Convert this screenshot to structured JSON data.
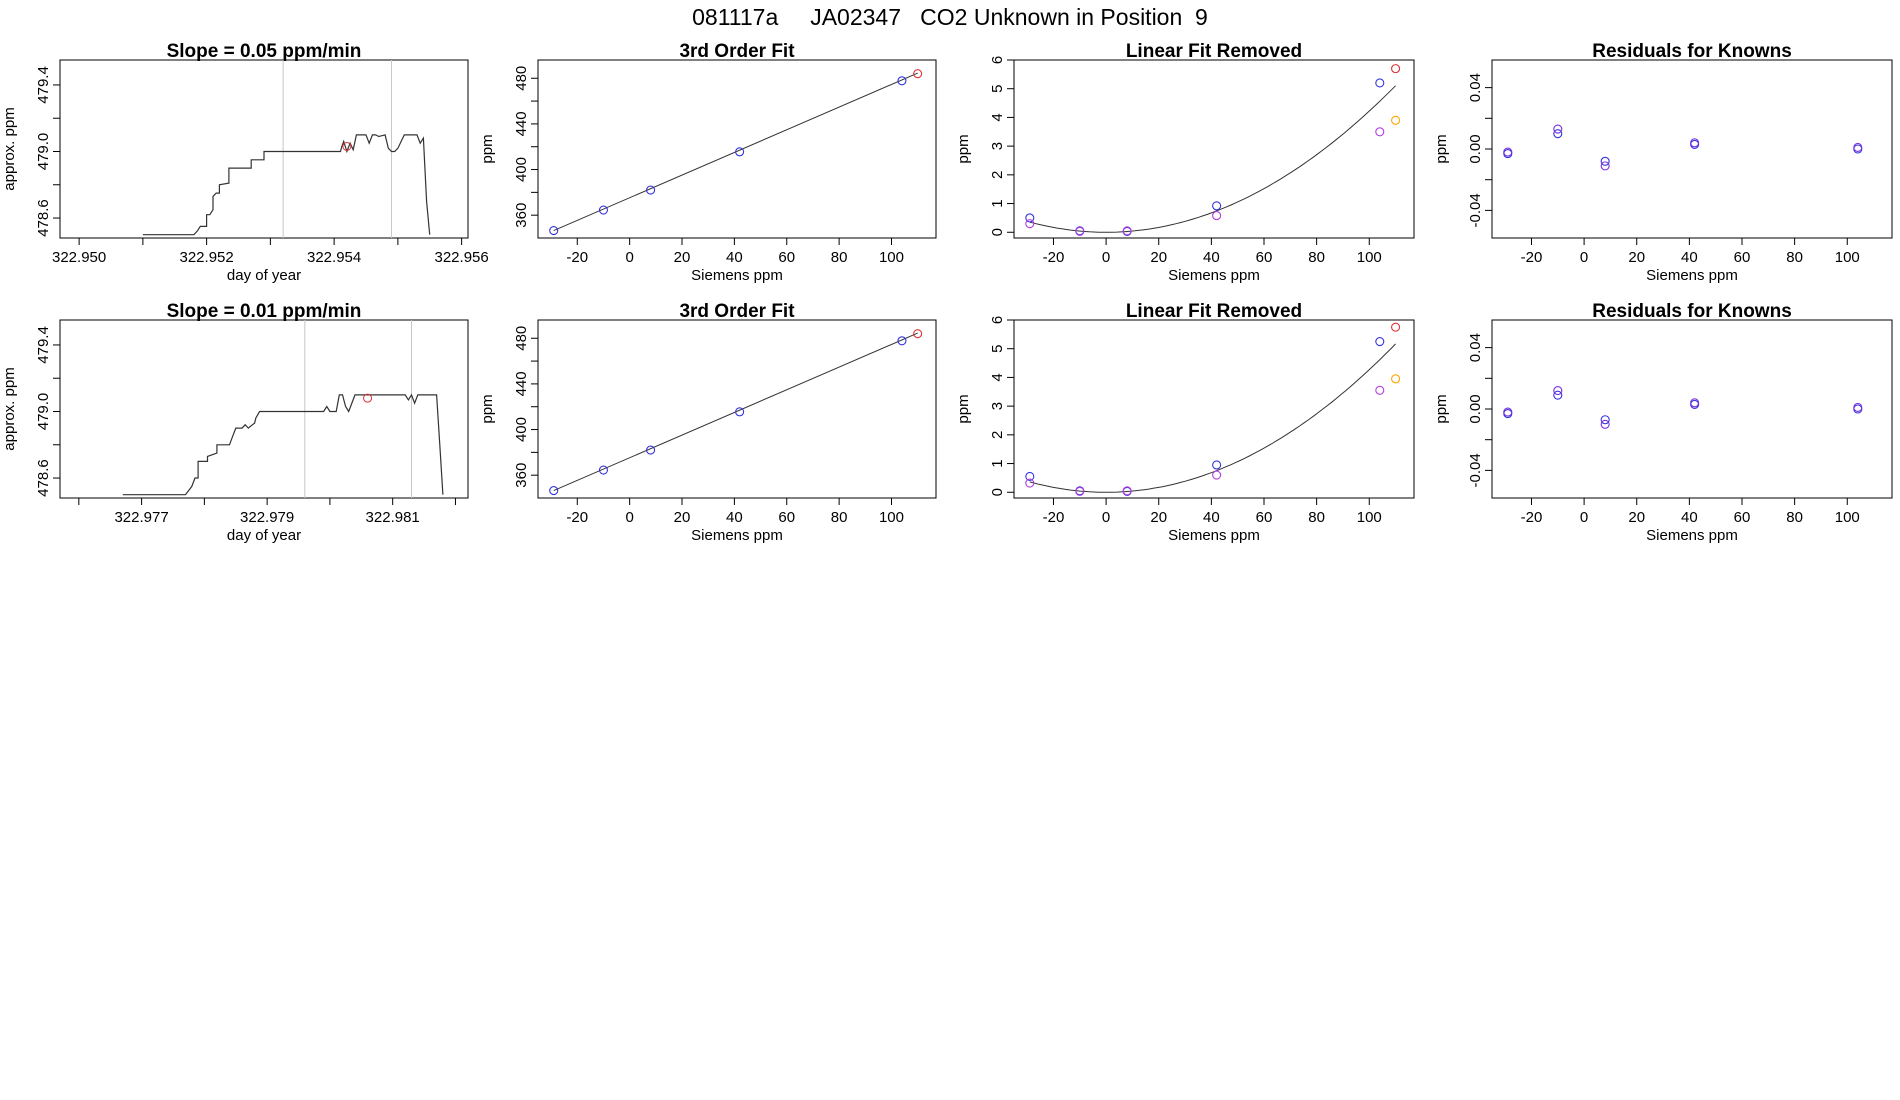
{
  "page": {
    "title": "081117a     JA02347   CO2 Unknown in Position  9"
  },
  "style": {
    "axis_color": "#000000",
    "line_color": "#333333",
    "vline_color": "#c8c8c8",
    "known_color": "#3333dd",
    "purple_color": "#b13fe0",
    "residual_color": "#7a2fe0",
    "red_color": "#dd3333",
    "orange_color": "#ffa500"
  },
  "chart_data": [
    {
      "id": "ts1",
      "type": "line",
      "title": "Slope =  0.05  ppm/min",
      "xlabel": "day of year",
      "ylabel": "approx. ppm",
      "xlim": [
        322.9497,
        322.9561
      ],
      "ylim": [
        478.48,
        479.55
      ],
      "xticks": [
        322.95,
        322.951,
        322.952,
        322.953,
        322.954,
        322.955,
        322.956
      ],
      "xtick_labels": [
        "322.950",
        "",
        "322.952",
        "",
        "322.954",
        "",
        "322.956"
      ],
      "yticks": [
        478.6,
        478.8,
        479.0,
        479.2,
        479.4
      ],
      "ytick_labels": [
        "478.6",
        "",
        "479.0",
        "",
        "479.4"
      ],
      "vlines": [
        322.9532,
        322.9549
      ],
      "series": [
        {
          "x": [
            322.951,
            322.9518,
            322.95185,
            322.9519,
            322.952,
            322.952,
            322.95205,
            322.9521,
            322.9521,
            322.95215,
            322.9522,
            322.9522,
            322.95235,
            322.95235,
            322.9524,
            322.9525,
            322.9525,
            322.9527,
            322.9527,
            322.9529,
            322.9529,
            322.9541,
            322.95412,
            322.95415,
            322.9542,
            322.95425,
            322.9543,
            322.95435,
            322.9544,
            322.9545,
            322.95455,
            322.9546,
            322.95465,
            322.9547,
            322.9548,
            322.95485,
            322.9549,
            322.95495,
            322.955,
            322.9551,
            322.9552,
            322.9553,
            322.95535,
            322.9554,
            322.95545,
            322.9555
          ],
          "y": [
            478.5,
            478.5,
            478.52,
            478.55,
            478.55,
            478.62,
            478.62,
            478.65,
            478.73,
            478.75,
            478.75,
            478.8,
            478.81,
            478.9,
            478.9,
            478.9,
            478.9,
            478.9,
            478.95,
            478.95,
            479.0,
            479.0,
            479.03,
            479.06,
            479.0,
            479.05,
            479.01,
            479.1,
            479.1,
            479.1,
            479.05,
            479.1,
            479.1,
            479.09,
            479.1,
            479.02,
            479.0,
            479.0,
            479.02,
            479.1,
            479.1,
            479.1,
            479.05,
            479.08,
            478.7,
            478.5
          ]
        }
      ],
      "marker": {
        "x": 322.9542,
        "y": 479.03,
        "color": "red"
      }
    },
    {
      "id": "fit1",
      "type": "scatter",
      "title": "3rd Order Fit",
      "xlabel": "Siemens ppm",
      "ylabel": "ppm",
      "xlim": [
        -35,
        117
      ],
      "ylim": [
        340,
        496
      ],
      "xticks": [
        -20,
        0,
        20,
        40,
        60,
        80,
        100
      ],
      "xtick_labels": [
        "-20",
        "0",
        "20",
        "40",
        "60",
        "80",
        "100"
      ],
      "yticks": [
        360,
        380,
        400,
        420,
        440,
        460,
        480
      ],
      "ytick_labels": [
        "360",
        "",
        "400",
        "",
        "440",
        "",
        "480"
      ],
      "curve": {
        "x": [
          -29,
          110
        ],
        "y": [
          346.5,
          484.5
        ]
      },
      "points": [
        {
          "x": -29,
          "y": 346.5,
          "color": "blue"
        },
        {
          "x": -10,
          "y": 364.5,
          "color": "blue"
        },
        {
          "x": 8,
          "y": 382.0,
          "color": "blue"
        },
        {
          "x": 42,
          "y": 415.5,
          "color": "blue"
        },
        {
          "x": 104,
          "y": 477.8,
          "color": "blue"
        },
        {
          "x": 110,
          "y": 484.0,
          "color": "red"
        }
      ]
    },
    {
      "id": "lin1",
      "type": "scatter",
      "title": "Linear Fit Removed",
      "xlabel": "Siemens ppm",
      "ylabel": "ppm",
      "xlim": [
        -35,
        117
      ],
      "ylim": [
        -0.2,
        6.0
      ],
      "xticks": [
        -20,
        0,
        20,
        40,
        60,
        80,
        100
      ],
      "xtick_labels": [
        "-20",
        "0",
        "20",
        "40",
        "60",
        "80",
        "100"
      ],
      "yticks": [
        0,
        1,
        2,
        3,
        4,
        5,
        6
      ],
      "ytick_labels": [
        "0",
        "1",
        "2",
        "3",
        "4",
        "5",
        "6"
      ],
      "curve": {
        "type": "quadratic",
        "a": 0.000422,
        "h": 0,
        "c": 0,
        "xmin": -29,
        "xmax": 110
      },
      "points": [
        {
          "x": -29,
          "y": 0.5,
          "color": "blue"
        },
        {
          "x": -10,
          "y": 0.05,
          "color": "blue"
        },
        {
          "x": 8,
          "y": 0.03,
          "color": "blue"
        },
        {
          "x": 42,
          "y": 0.92,
          "color": "blue"
        },
        {
          "x": 104,
          "y": 5.2,
          "color": "blue"
        },
        {
          "x": -29,
          "y": 0.3,
          "color": "purple"
        },
        {
          "x": -10,
          "y": 0.03,
          "color": "purple"
        },
        {
          "x": 8,
          "y": 0.05,
          "color": "purple"
        },
        {
          "x": 42,
          "y": 0.58,
          "color": "purple"
        },
        {
          "x": 104,
          "y": 3.5,
          "color": "purple"
        },
        {
          "x": 110,
          "y": 5.7,
          "color": "red"
        },
        {
          "x": 110,
          "y": 3.9,
          "color": "orange"
        }
      ]
    },
    {
      "id": "res1",
      "type": "scatter",
      "title": "Residuals for Knowns",
      "xlabel": "Siemens ppm",
      "ylabel": "ppm",
      "xlim": [
        -35,
        117
      ],
      "ylim": [
        -0.058,
        0.058
      ],
      "xticks": [
        -20,
        0,
        20,
        40,
        60,
        80,
        100
      ],
      "xtick_labels": [
        "-20",
        "0",
        "20",
        "40",
        "60",
        "80",
        "100"
      ],
      "yticks": [
        -0.04,
        -0.02,
        0.0,
        0.02,
        0.04
      ],
      "ytick_labels": [
        "-0.04",
        "",
        "0.00",
        "",
        "0.04"
      ],
      "points": [
        {
          "x": -29,
          "y": -0.003,
          "color": "blue"
        },
        {
          "x": -29,
          "y": -0.002,
          "color": "purple"
        },
        {
          "x": -10,
          "y": 0.01,
          "color": "blue"
        },
        {
          "x": -10,
          "y": 0.013,
          "color": "purple"
        },
        {
          "x": 8,
          "y": -0.008,
          "color": "blue"
        },
        {
          "x": 8,
          "y": -0.011,
          "color": "purple"
        },
        {
          "x": 42,
          "y": 0.003,
          "color": "blue"
        },
        {
          "x": 42,
          "y": 0.004,
          "color": "purple"
        },
        {
          "x": 104,
          "y": 0.0,
          "color": "blue"
        },
        {
          "x": 104,
          "y": 0.001,
          "color": "purple"
        }
      ]
    },
    {
      "id": "ts2",
      "type": "line",
      "title": "Slope =  0.01  ppm/min",
      "xlabel": "day of year",
      "ylabel": "approx. ppm",
      "xlim": [
        322.9757,
        322.9822
      ],
      "ylim": [
        478.48,
        479.55
      ],
      "xticks": [
        322.976,
        322.977,
        322.978,
        322.979,
        322.98,
        322.981,
        322.982
      ],
      "xtick_labels": [
        "",
        "322.977",
        "",
        "322.979",
        "",
        "322.981",
        ""
      ],
      "yticks": [
        478.6,
        478.8,
        479.0,
        479.2,
        479.4
      ],
      "ytick_labels": [
        "478.6",
        "",
        "479.0",
        "",
        "479.4"
      ],
      "vlines": [
        322.9796,
        322.9813
      ],
      "series": [
        {
          "x": [
            322.9767,
            322.9777,
            322.9778,
            322.97785,
            322.9779,
            322.9779,
            322.97795,
            322.97805,
            322.97805,
            322.9782,
            322.9782,
            322.97825,
            322.9784,
            322.97845,
            322.9785,
            322.9786,
            322.97865,
            322.9787,
            322.9787,
            322.9788,
            322.97882,
            322.97885,
            322.97888,
            322.9789,
            322.9796,
            322.9799,
            322.97995,
            322.98,
            322.9801,
            322.98015,
            322.9802,
            322.98025,
            322.9803,
            322.9804,
            322.9812,
            322.98125,
            322.9813,
            322.98135,
            322.9814,
            322.9815,
            322.9817,
            322.98175,
            322.9818
          ],
          "y": [
            478.5,
            478.5,
            478.55,
            478.6,
            478.6,
            478.7,
            478.7,
            478.7,
            478.73,
            478.75,
            478.8,
            478.8,
            478.8,
            478.85,
            478.9,
            478.9,
            478.92,
            478.9,
            478.9,
            478.93,
            478.96,
            478.98,
            479.0,
            479.0,
            479.0,
            479.0,
            479.03,
            479.0,
            479.0,
            479.1,
            479.1,
            479.03,
            479.0,
            479.1,
            479.1,
            479.07,
            479.1,
            479.05,
            479.1,
            479.1,
            479.1,
            478.8,
            478.5
          ]
        }
      ],
      "marker": {
        "x": 322.9806,
        "y": 479.08,
        "color": "red"
      }
    },
    {
      "id": "fit2",
      "type": "scatter",
      "title": "3rd Order Fit",
      "xlabel": "Siemens ppm",
      "ylabel": "ppm",
      "xlim": [
        -35,
        117
      ],
      "ylim": [
        340,
        496
      ],
      "xticks": [
        -20,
        0,
        20,
        40,
        60,
        80,
        100
      ],
      "xtick_labels": [
        "-20",
        "0",
        "20",
        "40",
        "60",
        "80",
        "100"
      ],
      "yticks": [
        360,
        380,
        400,
        420,
        440,
        460,
        480
      ],
      "ytick_labels": [
        "360",
        "",
        "400",
        "",
        "440",
        "",
        "480"
      ],
      "curve": {
        "x": [
          -29,
          110
        ],
        "y": [
          346.5,
          484.5
        ]
      },
      "points": [
        {
          "x": -29,
          "y": 346.5,
          "color": "blue"
        },
        {
          "x": -10,
          "y": 364.5,
          "color": "blue"
        },
        {
          "x": 8,
          "y": 382.0,
          "color": "blue"
        },
        {
          "x": 42,
          "y": 415.5,
          "color": "blue"
        },
        {
          "x": 104,
          "y": 477.8,
          "color": "blue"
        },
        {
          "x": 110,
          "y": 484.0,
          "color": "red"
        }
      ]
    },
    {
      "id": "lin2",
      "type": "scatter",
      "title": "Linear Fit Removed",
      "xlabel": "Siemens ppm",
      "ylabel": "ppm",
      "xlim": [
        -35,
        117
      ],
      "ylim": [
        -0.2,
        6.0
      ],
      "xticks": [
        -20,
        0,
        20,
        40,
        60,
        80,
        100
      ],
      "xtick_labels": [
        "-20",
        "0",
        "20",
        "40",
        "60",
        "80",
        "100"
      ],
      "yticks": [
        0,
        1,
        2,
        3,
        4,
        5,
        6
      ],
      "ytick_labels": [
        "0",
        "1",
        "2",
        "3",
        "4",
        "5",
        "6"
      ],
      "curve": {
        "type": "quadratic",
        "a": 0.000427,
        "h": 0,
        "c": 0,
        "xmin": -29,
        "xmax": 110
      },
      "points": [
        {
          "x": -29,
          "y": 0.55,
          "color": "blue"
        },
        {
          "x": -10,
          "y": 0.05,
          "color": "blue"
        },
        {
          "x": 8,
          "y": 0.03,
          "color": "blue"
        },
        {
          "x": 42,
          "y": 0.95,
          "color": "blue"
        },
        {
          "x": 104,
          "y": 5.25,
          "color": "blue"
        },
        {
          "x": -29,
          "y": 0.32,
          "color": "purple"
        },
        {
          "x": -10,
          "y": 0.03,
          "color": "purple"
        },
        {
          "x": 8,
          "y": 0.05,
          "color": "purple"
        },
        {
          "x": 42,
          "y": 0.6,
          "color": "purple"
        },
        {
          "x": 104,
          "y": 3.55,
          "color": "purple"
        },
        {
          "x": 110,
          "y": 5.75,
          "color": "red"
        },
        {
          "x": 110,
          "y": 3.95,
          "color": "orange"
        }
      ]
    },
    {
      "id": "res2",
      "type": "scatter",
      "title": "Residuals for Knowns",
      "xlabel": "Siemens ppm",
      "ylabel": "ppm",
      "xlim": [
        -35,
        117
      ],
      "ylim": [
        -0.058,
        0.058
      ],
      "xticks": [
        -20,
        0,
        20,
        40,
        60,
        80,
        100
      ],
      "xtick_labels": [
        "-20",
        "0",
        "20",
        "40",
        "60",
        "80",
        "100"
      ],
      "yticks": [
        -0.04,
        -0.02,
        0.0,
        0.02,
        0.04
      ],
      "ytick_labels": [
        "-0.04",
        "",
        "0.00",
        "",
        "0.04"
      ],
      "points": [
        {
          "x": -29,
          "y": -0.003,
          "color": "blue"
        },
        {
          "x": -29,
          "y": -0.002,
          "color": "purple"
        },
        {
          "x": -10,
          "y": 0.009,
          "color": "blue"
        },
        {
          "x": -10,
          "y": 0.012,
          "color": "purple"
        },
        {
          "x": 8,
          "y": -0.007,
          "color": "blue"
        },
        {
          "x": 8,
          "y": -0.01,
          "color": "purple"
        },
        {
          "x": 42,
          "y": 0.003,
          "color": "blue"
        },
        {
          "x": 42,
          "y": 0.004,
          "color": "purple"
        },
        {
          "x": 104,
          "y": 0.0,
          "color": "blue"
        },
        {
          "x": 104,
          "y": 0.001,
          "color": "purple"
        }
      ]
    }
  ]
}
